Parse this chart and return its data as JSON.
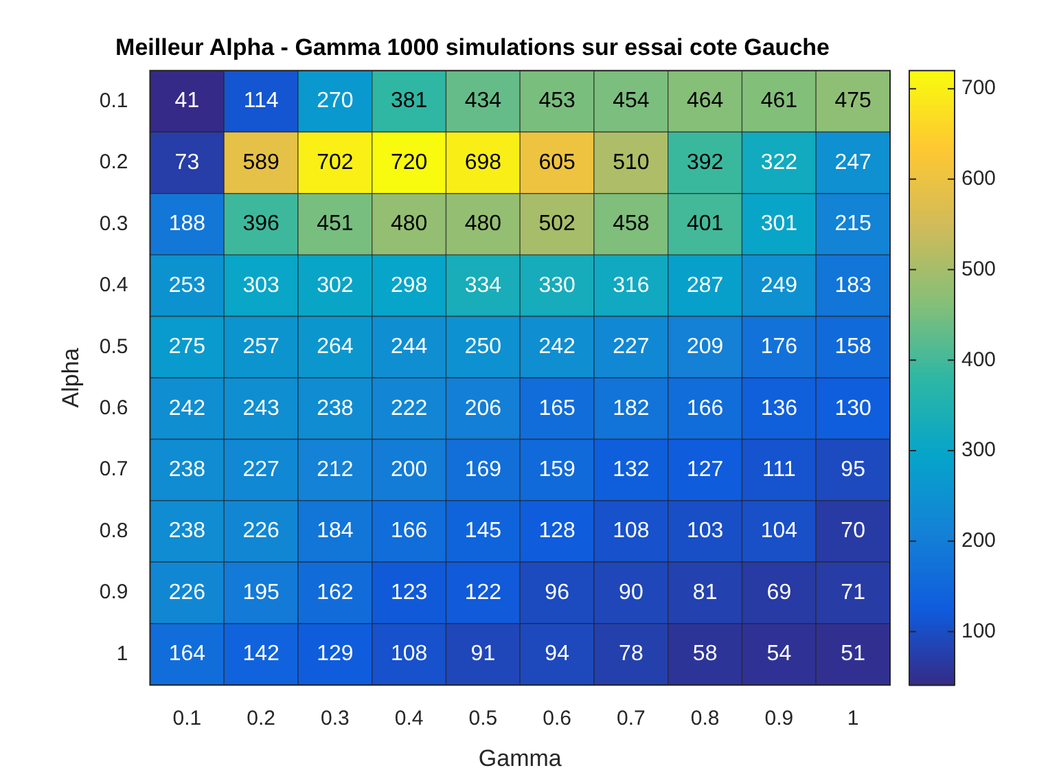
{
  "chart_data": {
    "type": "heatmap",
    "title": "Meilleur Alpha - Gamma 1000 simulations sur essai cote Gauche",
    "xlabel": "Gamma",
    "ylabel": "Alpha",
    "categories": [
      "0.1",
      "0.2",
      "0.3",
      "0.4",
      "0.5",
      "0.6",
      "0.7",
      "0.8",
      "0.9",
      "1"
    ],
    "y_categories": [
      "0.1",
      "0.2",
      "0.3",
      "0.4",
      "0.5",
      "0.6",
      "0.7",
      "0.8",
      "0.9",
      "1"
    ],
    "cells": [
      [
        41,
        114,
        270,
        381,
        434,
        453,
        454,
        464,
        461,
        475
      ],
      [
        73,
        589,
        702,
        720,
        698,
        605,
        510,
        392,
        322,
        247
      ],
      [
        188,
        396,
        451,
        480,
        480,
        502,
        458,
        401,
        301,
        215
      ],
      [
        253,
        303,
        302,
        298,
        334,
        330,
        316,
        287,
        249,
        183
      ],
      [
        275,
        257,
        264,
        244,
        250,
        242,
        227,
        209,
        176,
        158
      ],
      [
        242,
        243,
        238,
        222,
        206,
        165,
        182,
        166,
        136,
        130
      ],
      [
        238,
        227,
        212,
        200,
        169,
        159,
        132,
        127,
        111,
        95
      ],
      [
        238,
        226,
        184,
        166,
        145,
        128,
        108,
        103,
        104,
        70
      ],
      [
        226,
        195,
        162,
        123,
        122,
        96,
        90,
        81,
        69,
        71
      ],
      [
        164,
        142,
        129,
        108,
        91,
        94,
        78,
        58,
        54,
        51
      ]
    ],
    "data_labels": true,
    "clim": [
      41,
      720
    ],
    "cticks": [
      100,
      200,
      300,
      400,
      500,
      600,
      700
    ]
  }
}
